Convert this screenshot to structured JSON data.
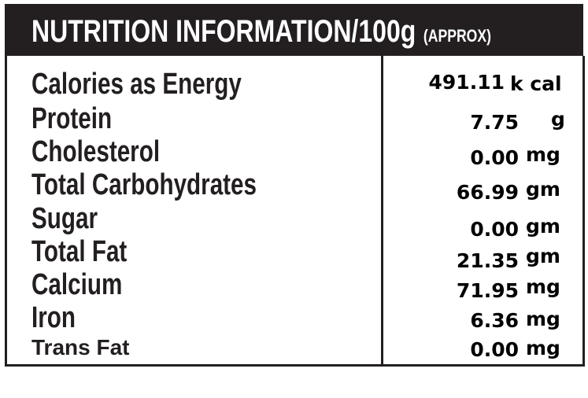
{
  "header": {
    "title": "NUTRITION INFORMATION/100g",
    "note": "(APPROX)"
  },
  "table": {
    "rows": [
      [
        "Calories as Energy",
        "491.11",
        "k cal"
      ],
      [
        "Protein",
        "7.75",
        "g"
      ],
      [
        "Cholesterol",
        "0.00",
        "mg"
      ],
      [
        "Total Carbohydrates",
        "66.99",
        "gm"
      ],
      [
        "Sugar",
        "0.00",
        "gm"
      ],
      [
        "Total Fat",
        "21.35",
        "gm"
      ],
      [
        "Calcium",
        "71.95",
        "mg"
      ],
      [
        "Iron",
        "6.36",
        "mg"
      ],
      [
        "Trans Fat",
        "0.00",
        "mg"
      ]
    ]
  }
}
